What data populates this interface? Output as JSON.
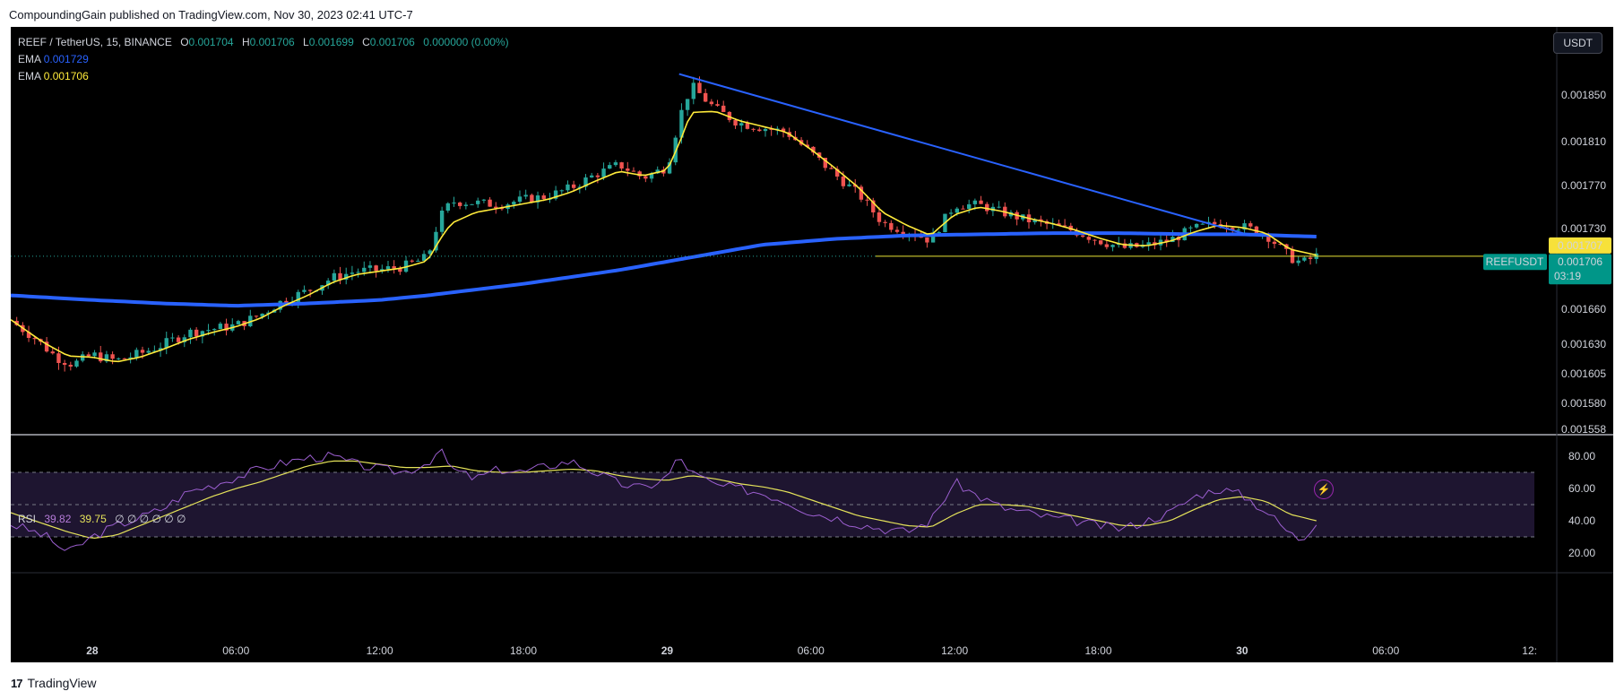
{
  "header": {
    "published": "CompoundingGain published on TradingView.com, Nov 30, 2023 02:41 UTC-7"
  },
  "footer": {
    "brand": "TradingView",
    "logo_mark": "17"
  },
  "legend": {
    "symbol": "REEF / TetherUS, 15, BINANCE",
    "ohlc": [
      {
        "k": "O",
        "v": "0.001704"
      },
      {
        "k": "H",
        "v": "0.001706"
      },
      {
        "k": "L",
        "v": "0.001699"
      },
      {
        "k": "C",
        "v": "0.001706"
      }
    ],
    "change": "0.000000 (0.00%)",
    "ema1": {
      "label": "EMA",
      "value": "0.001729"
    },
    "ema2": {
      "label": "EMA",
      "value": "0.001706"
    }
  },
  "rsi_legend": {
    "label": "RSI",
    "v1": "39.82",
    "v2": "39.75",
    "zeros": "∅ ∅ ∅ ∅ ∅ ∅"
  },
  "currency_button": "USDT",
  "colors": {
    "up": "#26a69a",
    "down": "#ef5350",
    "ema_fast": "#ffeb3b",
    "ema_slow": "#2962ff",
    "trendline": "#2962ff",
    "rsi": "#9c5fd0",
    "rsi_ma": "#e5e35a"
  },
  "chart_data": [
    {
      "type": "candlestick",
      "title": "REEF / TetherUS, 15, BINANCE",
      "y_ticks": [
        "0.001850",
        "0.001810",
        "0.001770",
        "0.001730",
        "0.001660",
        "0.001630",
        "0.001605",
        "0.001580",
        "0.001558"
      ],
      "y_tick_values": [
        0.00185,
        0.00181,
        0.00177,
        0.00173,
        0.00166,
        0.00163,
        0.001605,
        0.00158,
        0.001558
      ],
      "x_ticks": [
        "28",
        "06:00",
        "12:00",
        "18:00",
        "29",
        "06:00",
        "12:00",
        "18:00",
        "30",
        "06:00",
        "12:"
      ],
      "x_tick_hours": [
        0,
        6,
        12,
        18,
        24,
        30,
        36,
        42,
        48,
        54,
        60
      ],
      "x_range_hours": [
        -3.4,
        60.2
      ],
      "price_labels": [
        {
          "name": "EMA",
          "value": "0.001707"
        },
        {
          "name": "REEFUSDT",
          "value": "0.001706",
          "countdown": "03:19"
        }
      ],
      "close_anchors": [
        [
          -3.4,
          1650
        ],
        [
          -2.5,
          1637
        ],
        [
          -1.5,
          1619
        ],
        [
          -0.8,
          1613
        ],
        [
          0,
          1621
        ],
        [
          1,
          1616
        ],
        [
          2,
          1622
        ],
        [
          3,
          1630
        ],
        [
          4,
          1640
        ],
        [
          5,
          1643
        ],
        [
          6,
          1646
        ],
        [
          7,
          1655
        ],
        [
          8,
          1668
        ],
        [
          9,
          1676
        ],
        [
          10,
          1687
        ],
        [
          11,
          1693
        ],
        [
          12,
          1694
        ],
        [
          13,
          1697
        ],
        [
          14,
          1705
        ],
        [
          14.5,
          1740
        ],
        [
          15,
          1755
        ],
        [
          16,
          1754
        ],
        [
          17,
          1752
        ],
        [
          18,
          1757
        ],
        [
          19,
          1760
        ],
        [
          20,
          1768
        ],
        [
          21,
          1780
        ],
        [
          22,
          1789
        ],
        [
          23,
          1777
        ],
        [
          24,
          1787
        ],
        [
          24.5,
          1830
        ],
        [
          25,
          1858
        ],
        [
          26,
          1838
        ],
        [
          27,
          1826
        ],
        [
          28,
          1822
        ],
        [
          29,
          1818
        ],
        [
          30,
          1800
        ],
        [
          31,
          1780
        ],
        [
          32,
          1762
        ],
        [
          33,
          1735
        ],
        [
          34,
          1728
        ],
        [
          35,
          1720
        ],
        [
          36,
          1752
        ],
        [
          37,
          1752
        ],
        [
          38,
          1745
        ],
        [
          39,
          1738
        ],
        [
          40,
          1733
        ],
        [
          41,
          1728
        ],
        [
          42,
          1720
        ],
        [
          43,
          1713
        ],
        [
          44,
          1715
        ],
        [
          45,
          1720
        ],
        [
          46,
          1730
        ],
        [
          47,
          1735
        ],
        [
          48,
          1732
        ],
        [
          49,
          1725
        ],
        [
          50,
          1705
        ],
        [
          50.5,
          1700
        ],
        [
          51.1,
          1706
        ]
      ],
      "ema_fast_anchors": [
        [
          -3.4,
          1651
        ],
        [
          -2,
          1631
        ],
        [
          -1,
          1620
        ],
        [
          0,
          1619
        ],
        [
          1,
          1615
        ],
        [
          2,
          1619
        ],
        [
          3,
          1626
        ],
        [
          4,
          1634
        ],
        [
          5,
          1640
        ],
        [
          6,
          1645
        ],
        [
          7,
          1652
        ],
        [
          8,
          1663
        ],
        [
          9,
          1672
        ],
        [
          10,
          1683
        ],
        [
          11,
          1690
        ],
        [
          12,
          1693
        ],
        [
          13,
          1696
        ],
        [
          14,
          1702
        ],
        [
          14.5,
          1720
        ],
        [
          15,
          1735
        ],
        [
          16,
          1745
        ],
        [
          17,
          1749
        ],
        [
          18,
          1753
        ],
        [
          19,
          1757
        ],
        [
          20,
          1764
        ],
        [
          21,
          1774
        ],
        [
          22,
          1783
        ],
        [
          23,
          1779
        ],
        [
          24,
          1784
        ],
        [
          24.5,
          1808
        ],
        [
          25,
          1835
        ],
        [
          26,
          1836
        ],
        [
          27,
          1828
        ],
        [
          28,
          1823
        ],
        [
          29,
          1818
        ],
        [
          30,
          1803
        ],
        [
          31,
          1786
        ],
        [
          32,
          1768
        ],
        [
          33,
          1745
        ],
        [
          34,
          1733
        ],
        [
          35,
          1724
        ],
        [
          36,
          1743
        ],
        [
          37,
          1750
        ],
        [
          38,
          1746
        ],
        [
          39,
          1740
        ],
        [
          40,
          1735
        ],
        [
          41,
          1729
        ],
        [
          42,
          1722
        ],
        [
          43,
          1716
        ],
        [
          44,
          1715
        ],
        [
          45,
          1719
        ],
        [
          46,
          1727
        ],
        [
          47,
          1733
        ],
        [
          48,
          1731
        ],
        [
          49,
          1726
        ],
        [
          50,
          1712
        ],
        [
          51.1,
          1707
        ]
      ],
      "ema_slow_anchors": [
        [
          -3.4,
          1672
        ],
        [
          0,
          1668
        ],
        [
          3,
          1665
        ],
        [
          6,
          1663
        ],
        [
          9,
          1665
        ],
        [
          12,
          1668
        ],
        [
          14,
          1672
        ],
        [
          18,
          1682
        ],
        [
          22,
          1694
        ],
        [
          25,
          1705
        ],
        [
          28,
          1716
        ],
        [
          31,
          1721
        ],
        [
          34,
          1724
        ],
        [
          37,
          1725
        ],
        [
          40,
          1726
        ],
        [
          43,
          1726
        ],
        [
          46,
          1725
        ],
        [
          48,
          1725
        ],
        [
          51.1,
          1723
        ]
      ],
      "trendline": [
        [
          24.5,
          1868
        ],
        [
          48.2,
          1725
        ]
      ],
      "horizontal_line": {
        "start_hour": 32.7,
        "value": 1706
      },
      "price_scale": "units of 0.000001 USDT"
    },
    {
      "type": "line",
      "title": "RSI",
      "y_ticks": [
        "80.00",
        "60.00",
        "40.00",
        "20.00"
      ],
      "y_tick_values": [
        80,
        60,
        40,
        20
      ],
      "levels": [
        70,
        50,
        30
      ],
      "rsi_anchors": [
        [
          -3.4,
          38
        ],
        [
          -2,
          31
        ],
        [
          -1,
          20
        ],
        [
          0,
          30
        ],
        [
          1,
          37
        ],
        [
          2,
          42
        ],
        [
          3,
          48
        ],
        [
          4,
          58
        ],
        [
          5,
          62
        ],
        [
          6,
          67
        ],
        [
          7,
          72
        ],
        [
          8,
          76
        ],
        [
          9,
          79
        ],
        [
          10,
          80
        ],
        [
          11,
          75
        ],
        [
          12,
          72
        ],
        [
          13,
          70
        ],
        [
          14,
          76
        ],
        [
          14.5,
          84
        ],
        [
          15,
          72
        ],
        [
          16,
          66
        ],
        [
          17,
          72
        ],
        [
          18,
          70
        ],
        [
          19,
          74
        ],
        [
          20,
          77
        ],
        [
          21,
          70
        ],
        [
          22,
          63
        ],
        [
          23,
          60
        ],
        [
          24,
          67
        ],
        [
          24.5,
          80
        ],
        [
          25,
          70
        ],
        [
          26,
          62
        ],
        [
          27,
          60
        ],
        [
          28,
          57
        ],
        [
          29,
          52
        ],
        [
          30,
          45
        ],
        [
          31,
          42
        ],
        [
          32,
          38
        ],
        [
          33,
          35
        ],
        [
          34,
          33
        ],
        [
          35,
          40
        ],
        [
          36,
          64
        ],
        [
          37,
          55
        ],
        [
          38,
          48
        ],
        [
          39,
          45
        ],
        [
          40,
          42
        ],
        [
          41,
          40
        ],
        [
          42,
          37
        ],
        [
          43,
          35
        ],
        [
          44,
          40
        ],
        [
          45,
          45
        ],
        [
          46,
          55
        ],
        [
          47,
          60
        ],
        [
          48,
          56
        ],
        [
          49,
          46
        ],
        [
          50,
          32
        ],
        [
          50.5,
          28
        ],
        [
          51.1,
          40
        ]
      ],
      "rsi_ma_anchors": [
        [
          -3.4,
          45
        ],
        [
          -2,
          38
        ],
        [
          -1,
          33
        ],
        [
          0,
          29
        ],
        [
          1,
          31
        ],
        [
          2,
          37
        ],
        [
          3,
          43
        ],
        [
          4,
          49
        ],
        [
          5,
          55
        ],
        [
          6,
          60
        ],
        [
          7,
          64
        ],
        [
          8,
          69
        ],
        [
          9,
          74
        ],
        [
          10,
          77
        ],
        [
          11,
          77
        ],
        [
          12,
          75
        ],
        [
          13,
          73
        ],
        [
          14,
          73
        ],
        [
          15,
          74
        ],
        [
          16,
          71
        ],
        [
          17,
          70
        ],
        [
          18,
          70
        ],
        [
          19,
          71
        ],
        [
          20,
          72
        ],
        [
          21,
          71
        ],
        [
          22,
          68
        ],
        [
          23,
          66
        ],
        [
          24,
          65
        ],
        [
          25,
          68
        ],
        [
          26,
          66
        ],
        [
          27,
          63
        ],
        [
          28,
          61
        ],
        [
          29,
          58
        ],
        [
          30,
          53
        ],
        [
          31,
          48
        ],
        [
          32,
          43
        ],
        [
          33,
          40
        ],
        [
          34,
          37
        ],
        [
          35,
          36
        ],
        [
          36,
          44
        ],
        [
          37,
          50
        ],
        [
          38,
          50
        ],
        [
          39,
          49
        ],
        [
          40,
          46
        ],
        [
          41,
          43
        ],
        [
          42,
          40
        ],
        [
          43,
          37
        ],
        [
          44,
          37
        ],
        [
          45,
          40
        ],
        [
          46,
          47
        ],
        [
          47,
          53
        ],
        [
          48,
          55
        ],
        [
          49,
          52
        ],
        [
          50,
          44
        ],
        [
          51.1,
          40
        ]
      ]
    }
  ]
}
